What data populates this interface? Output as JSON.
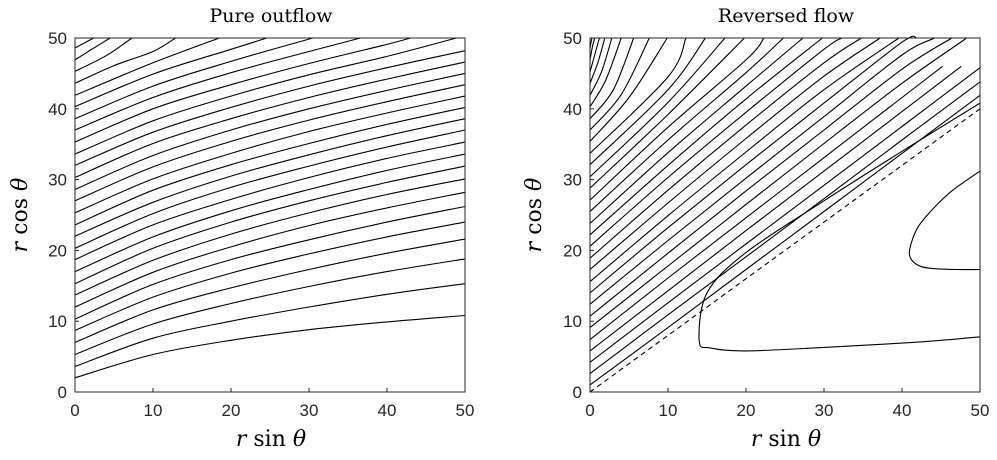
{
  "chart_data": [
    {
      "type": "line",
      "title": "Pure outflow",
      "xlabel": "r sin θ",
      "ylabel": "r cos θ",
      "xlim": [
        0,
        50
      ],
      "ylim": [
        0,
        50
      ],
      "xticks": [
        "0",
        "10",
        "20",
        "30",
        "40",
        "50"
      ],
      "yticks": [
        "0",
        "10",
        "20",
        "30",
        "40",
        "50"
      ],
      "grid": false,
      "series": [
        {
          "x": [
            0,
            10,
            20,
            30,
            40,
            50
          ],
          "y": [
            2.0,
            5.3,
            7.3,
            8.8,
            9.9,
            10.8
          ]
        },
        {
          "x": [
            0,
            10,
            20,
            30,
            40,
            50
          ],
          "y": [
            3.6,
            7.6,
            10.0,
            12.0,
            13.8,
            15.3
          ]
        },
        {
          "x": [
            0,
            10,
            20,
            30,
            40,
            50
          ],
          "y": [
            5.3,
            9.6,
            12.5,
            14.9,
            17.0,
            18.8
          ]
        },
        {
          "x": [
            0,
            10,
            20,
            30,
            40,
            50
          ],
          "y": [
            7.0,
            11.6,
            14.7,
            17.3,
            19.6,
            21.6
          ]
        },
        {
          "x": [
            0,
            10,
            20,
            30,
            40,
            50
          ],
          "y": [
            8.7,
            13.4,
            16.8,
            19.5,
            21.9,
            24.0
          ]
        },
        {
          "x": [
            0,
            10,
            20,
            30,
            40,
            50
          ],
          "y": [
            10.3,
            15.2,
            18.7,
            21.5,
            24.0,
            26.2
          ]
        },
        {
          "x": [
            0,
            10,
            20,
            30,
            40,
            50
          ],
          "y": [
            12.0,
            16.9,
            20.5,
            23.5,
            26.0,
            28.2
          ]
        },
        {
          "x": [
            0,
            10,
            20,
            30,
            40,
            50
          ],
          "y": [
            13.7,
            18.6,
            22.3,
            25.3,
            27.9,
            30.1
          ]
        },
        {
          "x": [
            0,
            10,
            20,
            30,
            40,
            50
          ],
          "y": [
            15.3,
            20.3,
            24.0,
            27.0,
            29.6,
            31.9
          ]
        },
        {
          "x": [
            0,
            10,
            20,
            30,
            40,
            50
          ],
          "y": [
            17.0,
            21.9,
            25.6,
            28.6,
            31.3,
            33.6
          ]
        },
        {
          "x": [
            0,
            10,
            20,
            30,
            40,
            50
          ],
          "y": [
            18.7,
            23.6,
            27.2,
            30.3,
            33.0,
            35.3
          ]
        },
        {
          "x": [
            0,
            10,
            20,
            30,
            40,
            50
          ],
          "y": [
            20.3,
            25.2,
            28.9,
            31.9,
            34.6,
            37.0
          ]
        },
        {
          "x": [
            0,
            10,
            20,
            30,
            40,
            50
          ],
          "y": [
            22.0,
            26.8,
            30.5,
            33.5,
            36.2,
            38.6
          ]
        },
        {
          "x": [
            0,
            10,
            20,
            30,
            40,
            50
          ],
          "y": [
            23.6,
            28.5,
            32.1,
            35.1,
            37.8,
            40.2
          ]
        },
        {
          "x": [
            0,
            10,
            20,
            30,
            40,
            50
          ],
          "y": [
            25.3,
            30.1,
            33.7,
            36.8,
            39.4,
            41.8
          ]
        },
        {
          "x": [
            0,
            10,
            20,
            30,
            40,
            50
          ],
          "y": [
            27.0,
            31.8,
            35.4,
            38.4,
            41.0,
            43.4
          ]
        },
        {
          "x": [
            0,
            10,
            20,
            30,
            40,
            50
          ],
          "y": [
            28.6,
            33.4,
            37.0,
            40.0,
            42.6,
            45.0
          ]
        },
        {
          "x": [
            0,
            10,
            20,
            30,
            40,
            50
          ],
          "y": [
            30.3,
            35.1,
            38.6,
            41.6,
            44.2,
            46.6
          ]
        },
        {
          "x": [
            0,
            10,
            20,
            30,
            40,
            50
          ],
          "y": [
            32.0,
            36.7,
            40.2,
            43.2,
            45.8,
            48.2
          ]
        },
        {
          "x": [
            0,
            10,
            20,
            30,
            40,
            48.9
          ],
          "y": [
            33.6,
            38.3,
            41.8,
            44.8,
            47.4,
            50.0
          ]
        },
        {
          "x": [
            0,
            10,
            20,
            30,
            40,
            43.0
          ],
          "y": [
            35.3,
            40.0,
            43.4,
            46.4,
            49.1,
            50.0
          ]
        },
        {
          "x": [
            0,
            10,
            20,
            30,
            36.6
          ],
          "y": [
            37.0,
            41.6,
            45.1,
            48.1,
            50.0
          ]
        },
        {
          "x": [
            0,
            10,
            20,
            30.5
          ],
          "y": [
            38.6,
            43.2,
            46.7,
            50.0
          ]
        },
        {
          "x": [
            0,
            10,
            20,
            24.6
          ],
          "y": [
            40.3,
            44.9,
            48.4,
            50.0
          ]
        },
        {
          "x": [
            0,
            10,
            18.5
          ],
          "y": [
            41.9,
            46.5,
            50.0
          ]
        },
        {
          "x": [
            0,
            5,
            10,
            12.9
          ],
          "y": [
            43.6,
            46.1,
            48.1,
            50.0
          ]
        },
        {
          "x": [
            0,
            4,
            7.3
          ],
          "y": [
            45.3,
            47.5,
            50.0
          ]
        },
        {
          "x": [
            0,
            2,
            4.5
          ],
          "y": [
            46.9,
            48.3,
            50.0
          ]
        },
        {
          "x": [
            0,
            1.2,
            2.4
          ],
          "y": [
            48.6,
            49.3,
            50.0
          ]
        }
      ]
    },
    {
      "type": "line",
      "title": "Reversed flow",
      "xlabel": "r sin θ",
      "ylabel": "r cos θ",
      "xlim": [
        0,
        50
      ],
      "ylim": [
        0,
        50
      ],
      "xticks": [
        "0",
        "10",
        "20",
        "30",
        "40",
        "50"
      ],
      "yticks": [
        "0",
        "10",
        "20",
        "30",
        "40",
        "50"
      ],
      "grid": false,
      "series": [
        {
          "x": [
            0,
            10,
            20,
            30,
            40,
            50
          ],
          "y": [
            0,
            8,
            16,
            24,
            32,
            40
          ],
          "style": "dashed"
        },
        {
          "x": [
            50,
            40,
            30,
            20,
            15,
            14,
            15.5,
            20,
            30,
            40,
            45,
            50
          ],
          "y": [
            40.8,
            34.0,
            27.0,
            19.7,
            14.0,
            7.2,
            6.2,
            5.8,
            6.3,
            6.9,
            7.3,
            7.8
          ]
        },
        {
          "x": [
            50,
            46.5,
            44.0,
            42.0,
            41.0,
            41.2,
            42.5,
            44.5,
            47.0,
            50
          ],
          "y": [
            31.2,
            28.5,
            25.9,
            23.2,
            20.2,
            18.7,
            17.7,
            17.4,
            17.3,
            17.3
          ]
        },
        {
          "x": [
            0,
            10,
            20,
            30,
            40,
            50
          ],
          "y": [
            1.0,
            9.1,
            17.3,
            25.5,
            33.7,
            41.9
          ]
        },
        {
          "x": [
            0,
            10,
            20,
            30,
            40,
            50
          ],
          "y": [
            2.6,
            10.9,
            19.1,
            27.3,
            35.6,
            43.8
          ]
        },
        {
          "x": [
            0,
            10,
            20,
            30,
            40,
            50
          ],
          "y": [
            4.2,
            12.6,
            20.9,
            29.2,
            37.5,
            45.8
          ]
        },
        {
          "x": [
            0,
            10,
            20,
            30,
            40,
            47.6
          ],
          "y": [
            5.8,
            14.3,
            22.8,
            31.2,
            39.6,
            46.0
          ]
        },
        {
          "x": [
            0,
            10,
            20,
            30,
            40,
            45.2
          ],
          "y": [
            7.4,
            16.1,
            24.6,
            33.1,
            41.6,
            46.0
          ]
        },
        {
          "x": [
            0,
            10,
            20,
            30,
            40,
            48.3
          ],
          "y": [
            9.1,
            17.8,
            26.5,
            35.1,
            43.6,
            50.0
          ]
        },
        {
          "x": [
            0,
            10,
            20,
            30,
            40,
            46.4
          ],
          "y": [
            10.7,
            19.6,
            28.4,
            37.0,
            45.6,
            50.0
          ]
        },
        {
          "x": [
            0,
            10,
            20,
            30,
            40,
            44.2
          ],
          "y": [
            12.4,
            21.4,
            30.2,
            38.9,
            47.6,
            50.0
          ]
        },
        {
          "x": [
            0,
            10,
            20,
            30,
            40,
            41.9
          ],
          "y": [
            14.0,
            23.2,
            32.1,
            40.8,
            49.4,
            50.0
          ]
        },
        {
          "x": [
            0,
            10,
            20,
            30,
            39.6
          ],
          "y": [
            15.6,
            24.9,
            33.9,
            42.7,
            50.0
          ]
        },
        {
          "x": [
            0,
            10,
            20,
            30,
            37.2
          ],
          "y": [
            17.3,
            26.7,
            35.8,
            44.6,
            50.0
          ]
        },
        {
          "x": [
            0,
            10,
            20,
            30,
            34.8
          ],
          "y": [
            18.9,
            28.5,
            37.7,
            46.5,
            50.0
          ]
        },
        {
          "x": [
            0,
            10,
            20,
            30,
            32.3
          ],
          "y": [
            20.6,
            30.3,
            39.5,
            48.4,
            50.0
          ]
        },
        {
          "x": [
            0,
            10,
            20,
            29.8
          ],
          "y": [
            22.2,
            32.0,
            41.4,
            50.0
          ]
        },
        {
          "x": [
            0,
            10,
            20,
            27.3
          ],
          "y": [
            23.8,
            33.8,
            43.2,
            50.0
          ]
        },
        {
          "x": [
            0,
            10,
            20,
            24.8
          ],
          "y": [
            25.5,
            35.6,
            45.1,
            50.0
          ]
        },
        {
          "x": [
            0,
            10,
            20,
            22.3
          ],
          "y": [
            27.1,
            37.4,
            46.9,
            50.0
          ]
        },
        {
          "x": [
            0,
            10,
            19.8
          ],
          "y": [
            28.8,
            39.2,
            50.0
          ]
        },
        {
          "x": [
            0,
            10,
            17.3
          ],
          "y": [
            30.4,
            40.9,
            50.0
          ]
        },
        {
          "x": [
            0,
            10,
            14.8
          ],
          "y": [
            32.1,
            42.7,
            50.0
          ]
        },
        {
          "x": [
            0,
            10,
            12.3
          ],
          "y": [
            33.7,
            44.5,
            50.0
          ]
        },
        {
          "x": [
            0,
            5,
            9.9
          ],
          "y": [
            35.4,
            41.6,
            50.0
          ]
        },
        {
          "x": [
            0,
            4,
            7.6
          ],
          "y": [
            37.0,
            42.0,
            50.0
          ]
        },
        {
          "x": [
            0,
            3,
            5.6
          ],
          "y": [
            38.6,
            42.7,
            50.0
          ]
        },
        {
          "x": [
            0,
            2,
            4.0
          ],
          "y": [
            40.3,
            44.0,
            50.0
          ]
        },
        {
          "x": [
            0,
            1.5,
            2.8
          ],
          "y": [
            41.9,
            45.3,
            50.0
          ]
        },
        {
          "x": [
            0,
            1.0,
            1.9
          ],
          "y": [
            43.6,
            46.5,
            50.0
          ]
        },
        {
          "x": [
            0,
            0.6,
            1.2
          ],
          "y": [
            45.2,
            47.6,
            50.0
          ]
        },
        {
          "x": [
            0,
            0.3,
            0.6
          ],
          "y": [
            46.9,
            48.7,
            50.0
          ]
        },
        {
          "x": [
            0,
            0.15,
            0.25
          ],
          "y": [
            48.5,
            49.5,
            50.0
          ]
        }
      ]
    }
  ]
}
